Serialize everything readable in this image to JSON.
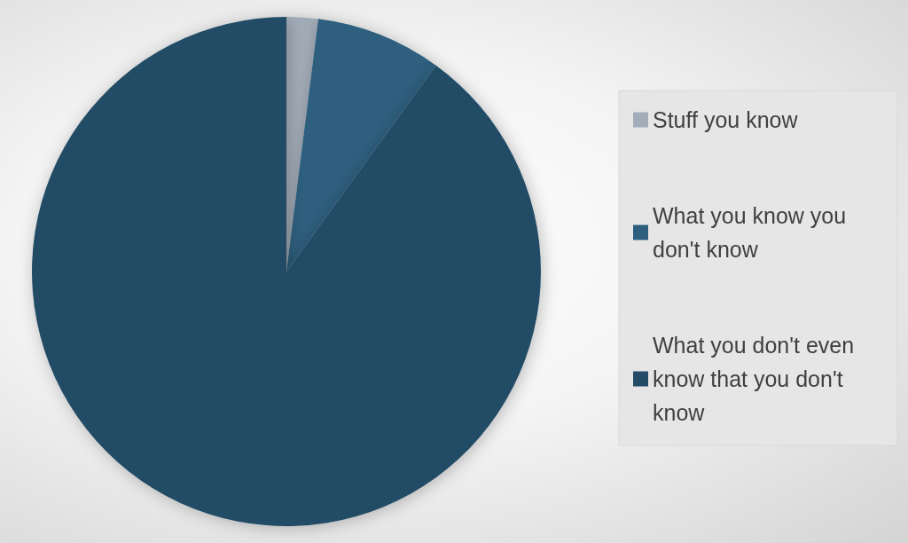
{
  "chart_data": {
    "type": "pie",
    "categories": [
      "Stuff you know",
      "What you know you don't know",
      "What you don't even know that you don't know"
    ],
    "values": [
      2,
      8,
      90
    ],
    "colors": [
      "#a3adb9",
      "#2e5e7e",
      "#244c66"
    ],
    "legend": "right"
  }
}
